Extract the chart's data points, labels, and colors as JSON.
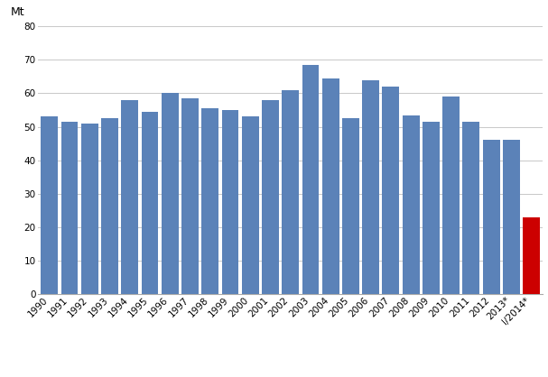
{
  "categories": [
    "1990",
    "1991",
    "1992",
    "1993",
    "1994",
    "1995",
    "1996",
    "1997",
    "1998",
    "1999",
    "2000",
    "2001",
    "2002",
    "2003",
    "2004",
    "2005",
    "2006",
    "2007",
    "2008",
    "2009",
    "2010",
    "2011",
    "2012",
    "2013*",
    "I/2014*"
  ],
  "values": [
    53,
    51.5,
    51,
    52.5,
    58,
    54.5,
    60,
    58.5,
    55.5,
    55,
    53,
    58,
    61,
    68.5,
    64.5,
    52.5,
    64,
    62,
    53.5,
    51.5,
    59,
    51.5,
    46,
    46,
    23
  ],
  "bar_colors": [
    "#5b82b8",
    "#5b82b8",
    "#5b82b8",
    "#5b82b8",
    "#5b82b8",
    "#5b82b8",
    "#5b82b8",
    "#5b82b8",
    "#5b82b8",
    "#5b82b8",
    "#5b82b8",
    "#5b82b8",
    "#5b82b8",
    "#5b82b8",
    "#5b82b8",
    "#5b82b8",
    "#5b82b8",
    "#5b82b8",
    "#5b82b8",
    "#5b82b8",
    "#5b82b8",
    "#5b82b8",
    "#5b82b8",
    "#5b82b8",
    "#cc0000"
  ],
  "ylabel": "Mt",
  "ylim": [
    0,
    80
  ],
  "yticks": [
    0,
    10,
    20,
    30,
    40,
    50,
    60,
    70,
    80
  ],
  "grid_color": "#c8c8c8",
  "background_color": "#ffffff",
  "ylabel_fontsize": 9,
  "tick_fontsize": 7.5
}
